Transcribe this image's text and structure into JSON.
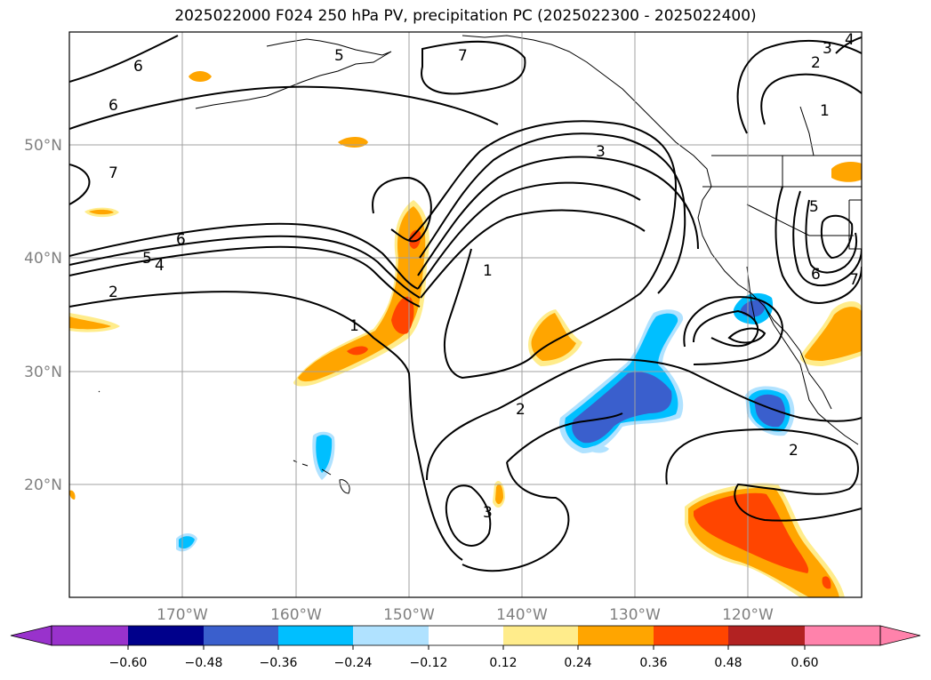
{
  "title": "2025022000 F024 250 hPa PV, precipitation PC (2025022300 - 2025022400)",
  "map": {
    "lat_labels": [
      "50°N",
      "40°N",
      "30°N",
      "20°N"
    ],
    "lon_labels": [
      "170°W",
      "160°W",
      "150°W",
      "140°W",
      "130°W",
      "120°W"
    ],
    "contour_labels": [
      "6",
      "6",
      "7",
      "5",
      "7",
      "6",
      "5",
      "4",
      "2",
      "1",
      "3",
      "1",
      "2",
      "3",
      "2",
      "1",
      "3",
      "4",
      "5",
      "7",
      "6",
      "2"
    ]
  },
  "colorbar": {
    "tick_labels": [
      "−0.60",
      "−0.48",
      "−0.36",
      "−0.24",
      "−0.12",
      "0.12",
      "0.24",
      "0.36",
      "0.48",
      "0.60"
    ],
    "colors": [
      "#9932cc",
      "#00008b",
      "#3a5fcd",
      "#00bfff",
      "#b0e2ff",
      "#ffffff",
      "#ffec8b",
      "#ffa500",
      "#ff4500",
      "#b22222",
      "#ff82ab"
    ]
  }
}
